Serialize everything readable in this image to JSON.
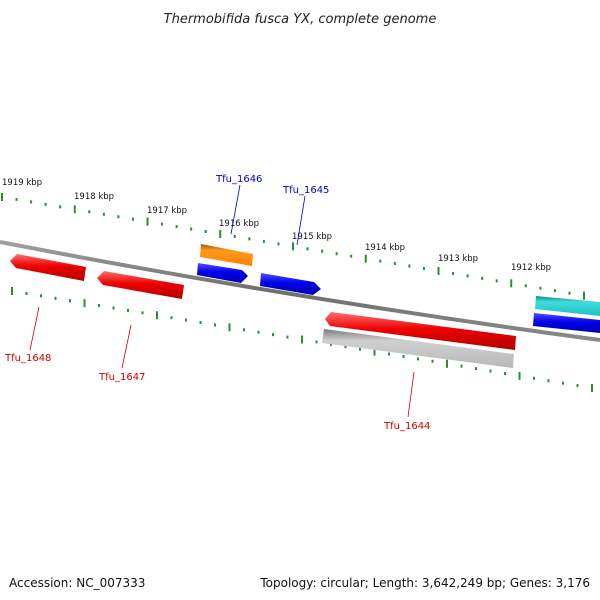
{
  "title": "Thermobifida fusca YX, complete genome",
  "footer": {
    "accession": "Accession: NC_007333",
    "summary": "Topology: circular; Length: 3,642,249 bp; Genes: 3,176"
  },
  "kbp_labels": [
    "1919 kbp",
    "1918 kbp",
    "1917 kbp",
    "1916 kbp",
    "1915 kbp",
    "1914 kbp",
    "1913 kbp",
    "1912 kbp"
  ],
  "genes": [
    {
      "name": "Tfu_1646",
      "strand": "plus",
      "color": "#0000cc"
    },
    {
      "name": "Tfu_1645",
      "strand": "plus",
      "color": "#0000cc"
    },
    {
      "name": "Tfu_1648",
      "strand": "minus",
      "color": "#cc0000"
    },
    {
      "name": "Tfu_1647",
      "strand": "minus",
      "color": "#cc0000"
    },
    {
      "name": "Tfu_1644",
      "strand": "minus",
      "color": "#cc0000"
    }
  ],
  "colors": {
    "backbone": "#7f7f7f",
    "tick": "#2e8b2e",
    "plus_gene": "#0000ee",
    "minus_gene": "#ee0000",
    "orange_feature": "#ff8c00",
    "cyan_feature": "#20c8c8",
    "gray_feature": "#b8b8b8"
  }
}
